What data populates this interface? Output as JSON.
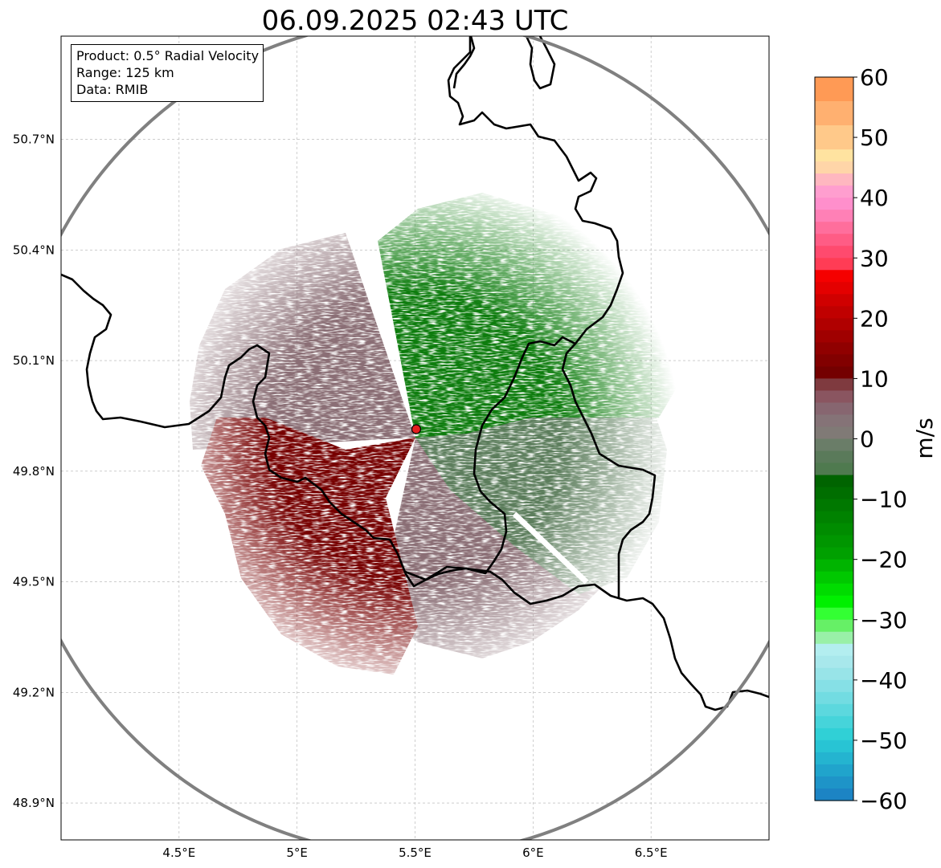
{
  "title": "06.09.2025 02:43 UTC",
  "info_box": {
    "product": "Product: 0.5° Radial Velocity",
    "range": "Range: 125 km",
    "source": "Data: RMIB"
  },
  "axes": {
    "lon_range": [
      4.0,
      7.0
    ],
    "lat_range": [
      48.8,
      50.98
    ],
    "lon_ticks": [
      4.5,
      5.0,
      5.5,
      6.0,
      6.5
    ],
    "lon_tick_labels": [
      "4.5°E",
      "5°E",
      "5.5°E",
      "6°E",
      "6.5°E"
    ],
    "lat_ticks": [
      50.7,
      50.4,
      50.1,
      49.8,
      49.5,
      49.2,
      48.9
    ],
    "lat_tick_labels": [
      "50.7°N",
      "50.4°N",
      "50.1°N",
      "49.8°N",
      "49.5°N",
      "49.2°N",
      "48.9°N"
    ]
  },
  "radar": {
    "site_lon": 5.505,
    "site_lat": 49.914,
    "range_km": 125
  },
  "colorbar": {
    "label": "m/s",
    "min": -60,
    "max": 60,
    "ticks": [
      60,
      50,
      40,
      30,
      20,
      10,
      0,
      -10,
      -20,
      -30,
      -40,
      -50,
      -60
    ],
    "tick_labels": [
      "60",
      "50",
      "40",
      "30",
      "20",
      "10",
      "0",
      "−10",
      "−20",
      "−30",
      "−40",
      "−50",
      "−60"
    ],
    "bands": [
      {
        "from": 56,
        "to": 60,
        "color": "#ff9a55"
      },
      {
        "from": 52,
        "to": 56,
        "color": "#ffb070"
      },
      {
        "from": 48,
        "to": 52,
        "color": "#ffc98a"
      },
      {
        "from": 46,
        "to": 48,
        "color": "#ffe3a0"
      },
      {
        "from": 44,
        "to": 46,
        "color": "#ffd5a8"
      },
      {
        "from": 42,
        "to": 44,
        "color": "#ffb7c0"
      },
      {
        "from": 40,
        "to": 42,
        "color": "#ff9ecf"
      },
      {
        "from": 38,
        "to": 40,
        "color": "#ff8fcc"
      },
      {
        "from": 36,
        "to": 38,
        "color": "#ff80b6"
      },
      {
        "from": 34,
        "to": 36,
        "color": "#ff6e9c"
      },
      {
        "from": 32,
        "to": 34,
        "color": "#ff5c85"
      },
      {
        "from": 30,
        "to": 32,
        "color": "#ff4a6e"
      },
      {
        "from": 28,
        "to": 30,
        "color": "#ff3c55"
      },
      {
        "from": 26,
        "to": 28,
        "color": "#f50000"
      },
      {
        "from": 24,
        "to": 26,
        "color": "#e40000"
      },
      {
        "from": 22,
        "to": 24,
        "color": "#d00000"
      },
      {
        "from": 20,
        "to": 22,
        "color": "#c00000"
      },
      {
        "from": 18,
        "to": 20,
        "color": "#b00000"
      },
      {
        "from": 16,
        "to": 18,
        "color": "#a00000"
      },
      {
        "from": 14,
        "to": 16,
        "color": "#900000"
      },
      {
        "from": 12,
        "to": 14,
        "color": "#820000"
      },
      {
        "from": 10,
        "to": 12,
        "color": "#740000"
      },
      {
        "from": 8,
        "to": 10,
        "color": "#7f3a3f"
      },
      {
        "from": 6,
        "to": 8,
        "color": "#8a5560"
      },
      {
        "from": 4,
        "to": 6,
        "color": "#876670"
      },
      {
        "from": 2,
        "to": 4,
        "color": "#857377"
      },
      {
        "from": 0,
        "to": 2,
        "color": "#807a76"
      },
      {
        "from": -2,
        "to": 0,
        "color": "#6a7d68"
      },
      {
        "from": -4,
        "to": -2,
        "color": "#5a7a5a"
      },
      {
        "from": -6,
        "to": -4,
        "color": "#4f7a4f"
      },
      {
        "from": -8,
        "to": -6,
        "color": "#006400"
      },
      {
        "from": -10,
        "to": -8,
        "color": "#006e00"
      },
      {
        "from": -12,
        "to": -10,
        "color": "#007800"
      },
      {
        "from": -14,
        "to": -12,
        "color": "#008200"
      },
      {
        "from": -16,
        "to": -14,
        "color": "#008c00"
      },
      {
        "from": -18,
        "to": -16,
        "color": "#009600"
      },
      {
        "from": -20,
        "to": -18,
        "color": "#00a000"
      },
      {
        "from": -22,
        "to": -20,
        "color": "#00b400"
      },
      {
        "from": -24,
        "to": -22,
        "color": "#00c800"
      },
      {
        "from": -26,
        "to": -24,
        "color": "#00dc00"
      },
      {
        "from": -28,
        "to": -26,
        "color": "#00f000"
      },
      {
        "from": -30,
        "to": -28,
        "color": "#33ff33"
      },
      {
        "from": -32,
        "to": -30,
        "color": "#66f066"
      },
      {
        "from": -34,
        "to": -32,
        "color": "#99f0a8"
      },
      {
        "from": -36,
        "to": -34,
        "color": "#b3eef0"
      },
      {
        "from": -38,
        "to": -36,
        "color": "#a8e8ec"
      },
      {
        "from": -40,
        "to": -38,
        "color": "#98e4e8"
      },
      {
        "from": -42,
        "to": -40,
        "color": "#86e0e6"
      },
      {
        "from": -44,
        "to": -42,
        "color": "#72dce2"
      },
      {
        "from": -46,
        "to": -44,
        "color": "#5cd8de"
      },
      {
        "from": -48,
        "to": -46,
        "color": "#46d4da"
      },
      {
        "from": -50,
        "to": -48,
        "color": "#30d0d6"
      },
      {
        "from": -52,
        "to": -50,
        "color": "#28c4d4"
      },
      {
        "from": -54,
        "to": -52,
        "color": "#24b4d0"
      },
      {
        "from": -56,
        "to": -54,
        "color": "#20a4cc"
      },
      {
        "from": -58,
        "to": -56,
        "color": "#1e94c8"
      },
      {
        "from": -60,
        "to": -58,
        "color": "#1c84c4"
      }
    ]
  },
  "velocity_regions": [
    {
      "name": "inbound-green-northeast",
      "color": "#0a7c0a",
      "velocity": -14
    },
    {
      "name": "near-zero-green-east",
      "color": "#5b7d5b",
      "velocity": -3
    },
    {
      "name": "near-zero-mauve-west",
      "color": "#8a6e74",
      "velocity": 3
    },
    {
      "name": "outbound-red-southwest",
      "color": "#760000",
      "velocity": 12
    }
  ],
  "colors": {
    "border": "#000000",
    "range_ring": "#808080",
    "site_marker": "#e32020",
    "grid": "#b0b0b0"
  }
}
